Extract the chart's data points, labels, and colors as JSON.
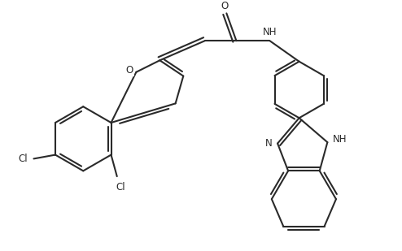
{
  "bg_color": "#ffffff",
  "line_color": "#2a2a2a",
  "line_width": 1.5,
  "figsize": [
    4.94,
    3.09
  ],
  "dpi": 100,
  "xlim": [
    0,
    10
  ],
  "ylim": [
    0,
    6.28
  ]
}
